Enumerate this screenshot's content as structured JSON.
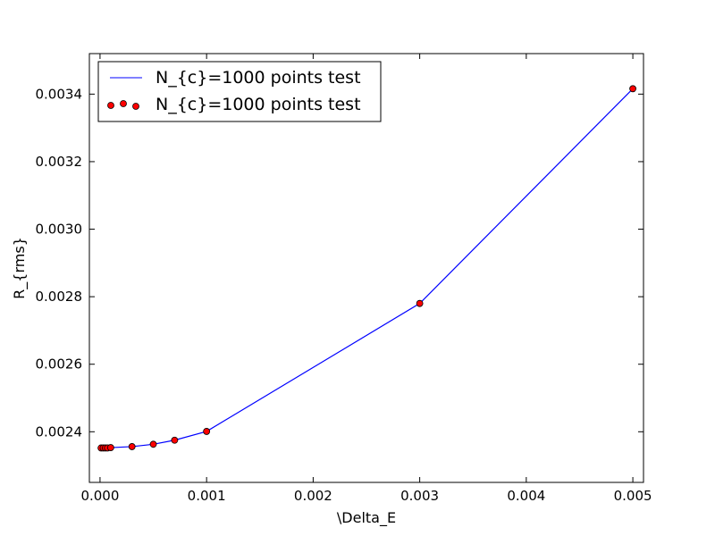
{
  "chart_data": {
    "type": "line",
    "xlabel": "\\Delta_E",
    "ylabel": "R_{rms}",
    "xlim": [
      -0.0001,
      0.0051
    ],
    "ylim": [
      0.00225,
      0.00352
    ],
    "x_ticks": [
      0.0,
      0.001,
      0.002,
      0.003,
      0.004,
      0.005
    ],
    "x_tick_labels": [
      "0.000",
      "0.001",
      "0.002",
      "0.003",
      "0.004",
      "0.005"
    ],
    "y_ticks": [
      0.0024,
      0.0026,
      0.0028,
      0.003,
      0.0032,
      0.0034
    ],
    "y_tick_labels": [
      "0.0024",
      "0.0026",
      "0.0028",
      "0.0030",
      "0.0032",
      "0.0034"
    ],
    "grid": false,
    "legend_position": "top-left",
    "series": [
      {
        "name": "N_{c}=1000 points test",
        "kind": "line",
        "color": "#0000ff",
        "x": [
          1e-05,
          3e-05,
          5e-05,
          7e-05,
          0.0001,
          0.0003,
          0.0005,
          0.0007,
          0.001,
          0.003,
          0.005
        ],
        "y": [
          0.002352,
          0.002352,
          0.002352,
          0.002352,
          0.002353,
          0.002356,
          0.002363,
          0.002375,
          0.002401,
          0.00278,
          0.003416
        ]
      },
      {
        "name": "N_{c}=1000 points test",
        "kind": "scatter",
        "color": "#ff0000",
        "x": [
          1e-05,
          3e-05,
          5e-05,
          7e-05,
          0.0001,
          0.0003,
          0.0005,
          0.0007,
          0.001,
          0.003,
          0.005
        ],
        "y": [
          0.002352,
          0.002352,
          0.002352,
          0.002352,
          0.002353,
          0.002356,
          0.002363,
          0.002375,
          0.002401,
          0.00278,
          0.003416
        ]
      }
    ]
  }
}
